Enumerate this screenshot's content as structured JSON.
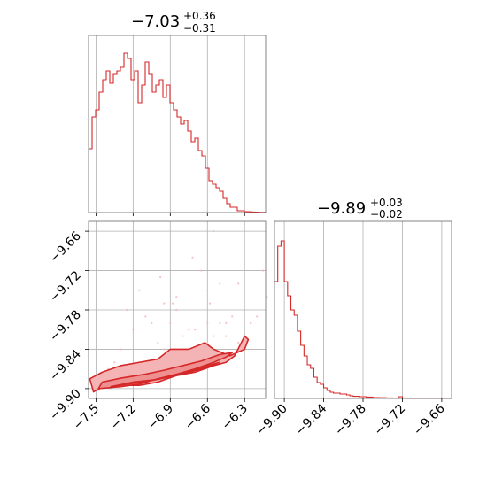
{
  "colors": {
    "series": "#d62728",
    "fill": "#f4b4b5",
    "grid": "#b0b0b0",
    "axis": "#000000"
  },
  "chart_data": [
    {
      "type": "histogram",
      "panel": "top-left",
      "title": {
        "main": "−7.03",
        "sup": "+0.36",
        "sub": "−0.31"
      },
      "xlim": [
        -7.56,
        -6.13
      ],
      "ylim": [
        0,
        1
      ],
      "xticks": [
        -7.5,
        -7.2,
        -6.9,
        -6.6,
        -6.3
      ],
      "grid": true,
      "bin_width": 0.0286,
      "bins_start": -7.56,
      "counts": [
        0.36,
        0.54,
        0.58,
        0.68,
        0.75,
        0.8,
        0.73,
        0.78,
        0.8,
        0.82,
        0.9,
        0.87,
        0.75,
        0.8,
        0.62,
        0.72,
        0.85,
        0.78,
        0.68,
        0.72,
        0.75,
        0.65,
        0.72,
        0.62,
        0.58,
        0.54,
        0.5,
        0.52,
        0.46,
        0.4,
        0.42,
        0.35,
        0.32,
        0.25,
        0.18,
        0.16,
        0.14,
        0.12,
        0.08,
        0.05,
        0.03,
        0.03,
        0.01,
        0.01,
        0.005,
        0.005,
        0.003,
        0.002,
        0.001,
        0.001
      ]
    },
    {
      "type": "histogram",
      "panel": "bottom-right",
      "title": {
        "main": "−9.89",
        "sup": "+0.03",
        "sub": "−0.02"
      },
      "xlim": [
        -9.915,
        -9.645
      ],
      "ylim": [
        0,
        1
      ],
      "xticks": [
        -9.9,
        -9.84,
        -9.78,
        -9.72,
        -9.66
      ],
      "tick_labels": [
        "−9.90",
        "−9.84",
        "−9.78",
        "−9.72",
        "−9.66"
      ],
      "grid": true,
      "bin_width": 0.005,
      "bins_start": -9.915,
      "counts": [
        0.66,
        0.86,
        0.89,
        0.66,
        0.58,
        0.5,
        0.47,
        0.38,
        0.3,
        0.24,
        0.19,
        0.17,
        0.12,
        0.09,
        0.08,
        0.06,
        0.045,
        0.035,
        0.03,
        0.03,
        0.025,
        0.025,
        0.02,
        0.015,
        0.012,
        0.012,
        0.01,
        0.01,
        0.008,
        0.008,
        0.005,
        0.005,
        0.004,
        0.004,
        0.003,
        0.003,
        0.002,
        0.002,
        0.01,
        0.002,
        0.001,
        0.001,
        0.001,
        0.001,
        0.001,
        0.001,
        0.001,
        0.001,
        0.001,
        0.001,
        0.001,
        0.001,
        0.001,
        0.001
      ]
    },
    {
      "type": "scatter",
      "panel": "bottom-left",
      "xlim": [
        -7.56,
        -6.13
      ],
      "ylim": [
        -9.915,
        -9.645
      ],
      "xticks": [
        -7.5,
        -7.2,
        -6.9,
        -6.6,
        -6.3
      ],
      "xtick_labels": [
        "−7.5",
        "−7.2",
        "−6.9",
        "−6.6",
        "−6.3"
      ],
      "yticks": [
        -9.66,
        -9.72,
        -9.78,
        -9.84,
        -9.9
      ],
      "ytick_labels": [
        "−9.66",
        "−9.72",
        "−9.78",
        "−9.84",
        "−9.90"
      ],
      "grid": true,
      "points": [
        [
          -7.05,
          -9.8
        ],
        [
          -6.95,
          -9.77
        ],
        [
          -6.85,
          -9.78
        ],
        [
          -6.75,
          -9.81
        ],
        [
          -6.5,
          -9.74
        ],
        [
          -6.45,
          -9.8
        ],
        [
          -6.4,
          -9.79
        ],
        [
          -6.55,
          -9.66
        ],
        [
          -6.5,
          -9.8
        ],
        [
          -6.15,
          -9.72
        ],
        [
          -7.0,
          -9.83
        ],
        [
          -6.95,
          -9.84
        ],
        [
          -7.2,
          -9.81
        ],
        [
          -7.15,
          -9.86
        ],
        [
          -6.98,
          -9.73
        ],
        [
          -6.9,
          -9.8
        ],
        [
          -6.8,
          -9.82
        ],
        [
          -6.85,
          -9.76
        ],
        [
          -6.7,
          -9.81
        ],
        [
          -6.6,
          -9.8
        ],
        [
          -6.62,
          -9.83
        ],
        [
          -6.58,
          -9.77
        ],
        [
          -6.35,
          -9.74
        ],
        [
          -6.3,
          -9.82
        ],
        [
          -6.25,
          -9.8
        ],
        [
          -6.2,
          -9.79
        ],
        [
          -7.25,
          -9.78
        ],
        [
          -7.3,
          -9.84
        ],
        [
          -7.4,
          -9.87
        ],
        [
          -7.45,
          -9.88
        ],
        [
          -7.35,
          -9.86
        ],
        [
          -6.12,
          -9.76
        ],
        [
          -6.72,
          -9.7
        ],
        [
          -6.65,
          -9.72
        ],
        [
          -6.6,
          -9.75
        ],
        [
          -7.1,
          -9.79
        ],
        [
          -7.05,
          -9.86
        ],
        [
          -6.95,
          -9.88
        ],
        [
          -6.85,
          -9.87
        ],
        [
          -6.75,
          -9.85
        ],
        [
          -6.65,
          -9.84
        ],
        [
          -6.55,
          -9.82
        ],
        [
          -6.45,
          -9.82
        ],
        [
          -6.35,
          -9.83
        ],
        [
          -6.25,
          -9.8
        ],
        [
          -7.15,
          -9.75
        ],
        [
          -6.88,
          -9.77
        ]
      ],
      "contour_levels": [
        [
          [
            -7.52,
            -9.905
          ],
          [
            -7.42,
            -9.895
          ],
          [
            -7.3,
            -9.895
          ],
          [
            -7.15,
            -9.895
          ],
          [
            -7.0,
            -9.89
          ],
          [
            -6.85,
            -9.88
          ],
          [
            -6.7,
            -9.875
          ],
          [
            -6.55,
            -9.865
          ],
          [
            -6.45,
            -9.86
          ],
          [
            -6.38,
            -9.85
          ],
          [
            -6.3,
            -9.82
          ],
          [
            -6.27,
            -9.825
          ],
          [
            -6.3,
            -9.84
          ],
          [
            -6.42,
            -9.85
          ],
          [
            -6.55,
            -9.84
          ],
          [
            -6.62,
            -9.83
          ],
          [
            -6.75,
            -9.84
          ],
          [
            -6.9,
            -9.84
          ],
          [
            -7.0,
            -9.855
          ],
          [
            -7.15,
            -9.86
          ],
          [
            -7.3,
            -9.865
          ],
          [
            -7.45,
            -9.875
          ],
          [
            -7.55,
            -9.885
          ]
        ],
        [
          [
            -7.48,
            -9.9
          ],
          [
            -7.3,
            -9.897
          ],
          [
            -7.15,
            -9.893
          ],
          [
            -7.0,
            -9.885
          ],
          [
            -6.85,
            -9.878
          ],
          [
            -6.7,
            -9.87
          ],
          [
            -6.55,
            -9.86
          ],
          [
            -6.45,
            -9.852
          ],
          [
            -6.4,
            -9.845
          ],
          [
            -6.5,
            -9.848
          ],
          [
            -6.65,
            -9.858
          ],
          [
            -6.8,
            -9.865
          ],
          [
            -6.95,
            -9.872
          ],
          [
            -7.1,
            -9.878
          ],
          [
            -7.3,
            -9.884
          ],
          [
            -7.45,
            -9.89
          ]
        ],
        [
          [
            -7.38,
            -9.897
          ],
          [
            -7.2,
            -9.892
          ],
          [
            -7.0,
            -9.886
          ],
          [
            -6.8,
            -9.876
          ],
          [
            -6.6,
            -9.865
          ],
          [
            -6.5,
            -9.86
          ],
          [
            -6.62,
            -9.868
          ],
          [
            -6.8,
            -9.878
          ],
          [
            -7.0,
            -9.886
          ],
          [
            -7.2,
            -9.89
          ]
        ]
      ]
    }
  ]
}
